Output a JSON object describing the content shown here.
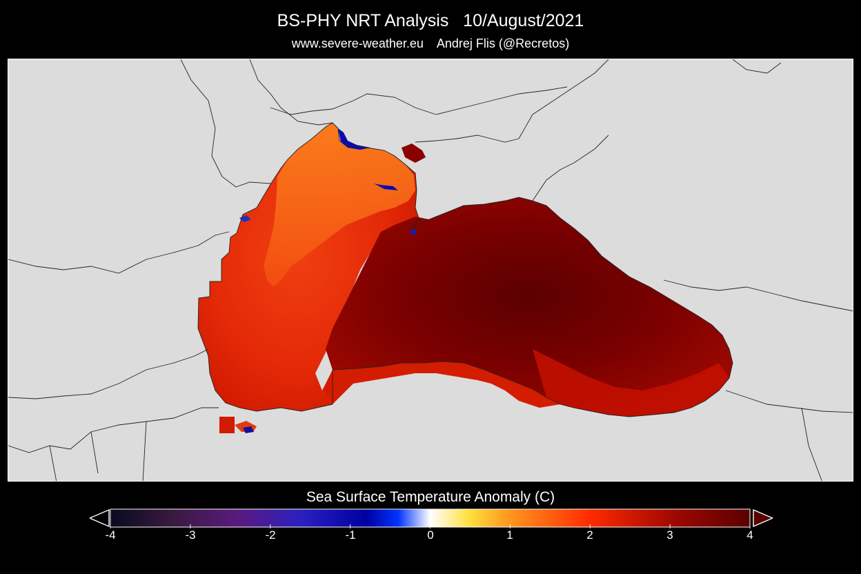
{
  "header": {
    "title": "BS-PHY NRT Analysis   10/August/2021",
    "subtitle": "www.severe-weather.eu    Andrej Flis (@Recretos)"
  },
  "colorbar": {
    "label": "Sea Surface Temperature Anomaly (C)",
    "min": -4,
    "max": 4,
    "ticks": [
      "-4",
      "-3",
      "-2",
      "-1",
      "0",
      "1",
      "2",
      "3",
      "4"
    ],
    "colors": {
      "land": "#dcdcdc",
      "ocean_warm": "#d21a00",
      "ocean_hot": "#7a0000",
      "ocean_mild": "#f26a10",
      "ocean_cool": "#0000b0",
      "coastline": "#222222"
    }
  }
}
